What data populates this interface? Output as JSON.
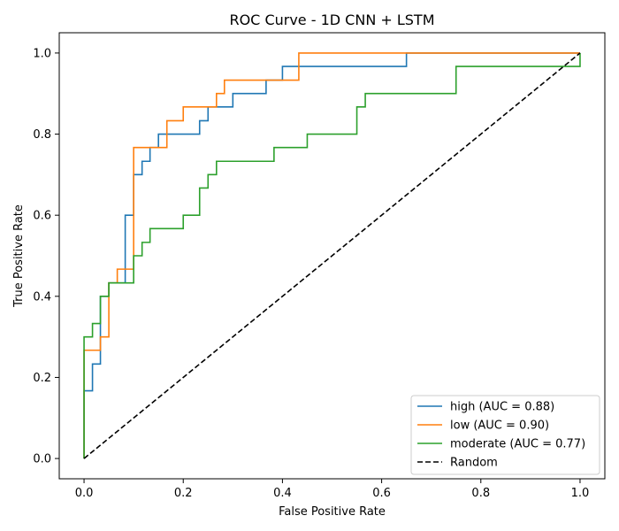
{
  "chart_data": {
    "type": "line",
    "title": "ROC Curve - 1D CNN + LSTM",
    "xlabel": "False Positive Rate",
    "ylabel": "True Positive Rate",
    "xlim": [
      -0.05,
      1.05
    ],
    "ylim": [
      -0.05,
      1.05
    ],
    "xticks": [
      "0.0",
      "0.2",
      "0.4",
      "0.6",
      "0.8",
      "1.0"
    ],
    "yticks": [
      "0.0",
      "0.2",
      "0.4",
      "0.6",
      "0.8",
      "1.0"
    ],
    "grid": false,
    "legend_position": "bottom-right",
    "series": [
      {
        "name": "high (AUC = 0.88)",
        "color": "#1f77b4",
        "style": "solid",
        "points": [
          [
            0,
            0
          ],
          [
            0,
            0.167
          ],
          [
            0.017,
            0.167
          ],
          [
            0.017,
            0.233
          ],
          [
            0.033,
            0.233
          ],
          [
            0.033,
            0.4
          ],
          [
            0.05,
            0.4
          ],
          [
            0.05,
            0.433
          ],
          [
            0.083,
            0.433
          ],
          [
            0.083,
            0.6
          ],
          [
            0.1,
            0.6
          ],
          [
            0.1,
            0.7
          ],
          [
            0.117,
            0.7
          ],
          [
            0.117,
            0.733
          ],
          [
            0.133,
            0.733
          ],
          [
            0.133,
            0.767
          ],
          [
            0.15,
            0.767
          ],
          [
            0.15,
            0.8
          ],
          [
            0.233,
            0.8
          ],
          [
            0.233,
            0.833
          ],
          [
            0.25,
            0.833
          ],
          [
            0.25,
            0.867
          ],
          [
            0.3,
            0.867
          ],
          [
            0.3,
            0.9
          ],
          [
            0.367,
            0.9
          ],
          [
            0.367,
            0.933
          ],
          [
            0.4,
            0.933
          ],
          [
            0.4,
            0.967
          ],
          [
            0.65,
            0.967
          ],
          [
            0.65,
            1.0
          ],
          [
            1.0,
            1.0
          ]
        ]
      },
      {
        "name": "low (AUC = 0.90)",
        "color": "#ff7f0e",
        "style": "solid",
        "points": [
          [
            0,
            0
          ],
          [
            0,
            0.267
          ],
          [
            0.033,
            0.267
          ],
          [
            0.033,
            0.3
          ],
          [
            0.05,
            0.3
          ],
          [
            0.05,
            0.433
          ],
          [
            0.067,
            0.433
          ],
          [
            0.067,
            0.467
          ],
          [
            0.1,
            0.467
          ],
          [
            0.1,
            0.767
          ],
          [
            0.167,
            0.767
          ],
          [
            0.167,
            0.833
          ],
          [
            0.2,
            0.833
          ],
          [
            0.2,
            0.867
          ],
          [
            0.267,
            0.867
          ],
          [
            0.267,
            0.9
          ],
          [
            0.283,
            0.9
          ],
          [
            0.283,
            0.933
          ],
          [
            0.433,
            0.933
          ],
          [
            0.433,
            1.0
          ],
          [
            1.0,
            1.0
          ]
        ]
      },
      {
        "name": "moderate (AUC = 0.77)",
        "color": "#2ca02c",
        "style": "solid",
        "points": [
          [
            0,
            0
          ],
          [
            0,
            0.3
          ],
          [
            0.017,
            0.3
          ],
          [
            0.017,
            0.333
          ],
          [
            0.033,
            0.333
          ],
          [
            0.033,
            0.4
          ],
          [
            0.05,
            0.4
          ],
          [
            0.05,
            0.433
          ],
          [
            0.1,
            0.433
          ],
          [
            0.1,
            0.5
          ],
          [
            0.117,
            0.5
          ],
          [
            0.117,
            0.533
          ],
          [
            0.133,
            0.533
          ],
          [
            0.133,
            0.567
          ],
          [
            0.2,
            0.567
          ],
          [
            0.2,
            0.6
          ],
          [
            0.233,
            0.6
          ],
          [
            0.233,
            0.667
          ],
          [
            0.25,
            0.667
          ],
          [
            0.25,
            0.7
          ],
          [
            0.267,
            0.7
          ],
          [
            0.267,
            0.733
          ],
          [
            0.383,
            0.733
          ],
          [
            0.383,
            0.767
          ],
          [
            0.45,
            0.767
          ],
          [
            0.45,
            0.8
          ],
          [
            0.55,
            0.8
          ],
          [
            0.55,
            0.867
          ],
          [
            0.567,
            0.867
          ],
          [
            0.567,
            0.9
          ],
          [
            0.75,
            0.9
          ],
          [
            0.75,
            0.967
          ],
          [
            1.0,
            0.967
          ],
          [
            1.0,
            1.0
          ]
        ]
      },
      {
        "name": "Random",
        "color": "#000000",
        "style": "dashed",
        "points": [
          [
            0,
            0
          ],
          [
            1,
            1
          ]
        ]
      }
    ]
  }
}
